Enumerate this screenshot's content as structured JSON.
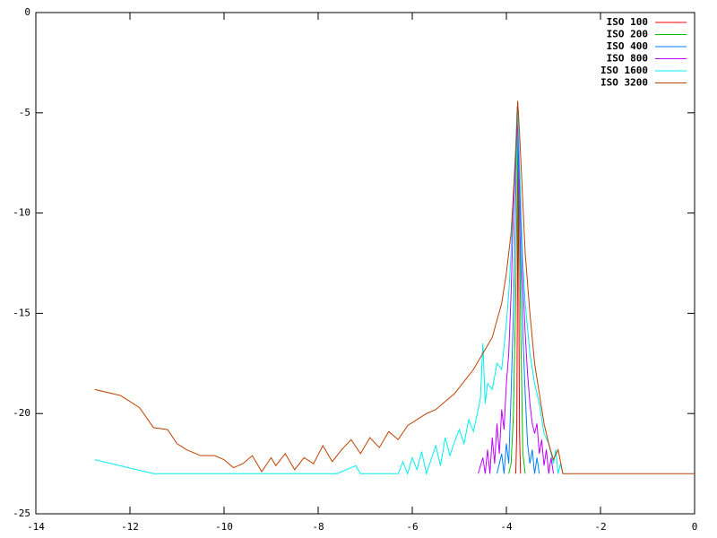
{
  "chart_data": {
    "type": "line",
    "xlim": [
      -14,
      0
    ],
    "ylim": [
      -25,
      0
    ],
    "xticks": [
      -14,
      -12,
      -10,
      -8,
      -6,
      -4,
      -2,
      0
    ],
    "yticks": [
      -25,
      -20,
      -15,
      -10,
      -5,
      0
    ],
    "legend": "top-right",
    "series": [
      {
        "name": "ISO 100",
        "color": "#ff0000",
        "x": [
          -3.8,
          -3.78,
          -3.76,
          -3.75,
          -3.74,
          -3.72,
          -3.7
        ],
        "values": [
          -23,
          -21,
          -12,
          -4.8,
          -12,
          -21,
          -23
        ]
      },
      {
        "name": "ISO 200",
        "color": "#00c000",
        "x": [
          -3.95,
          -3.9,
          -3.85,
          -3.8,
          -3.76,
          -3.75,
          -3.74,
          -3.7,
          -3.65,
          -3.6
        ],
        "values": [
          -23,
          -22.5,
          -20,
          -14,
          -7,
          -4.8,
          -7,
          -15,
          -22,
          -23
        ]
      },
      {
        "name": "ISO 400",
        "color": "#0080ff",
        "x": [
          -4.2,
          -4.1,
          -4.05,
          -4.0,
          -3.95,
          -3.9,
          -3.85,
          -3.8,
          -3.77,
          -3.74,
          -3.7,
          -3.65,
          -3.6,
          -3.55,
          -3.5,
          -3.45,
          -3.4,
          -3.35,
          -3.3
        ],
        "values": [
          -23,
          -22,
          -23,
          -21.5,
          -22.5,
          -19,
          -15,
          -9,
          -4.7,
          -8,
          -12,
          -16,
          -19,
          -21.5,
          -22.5,
          -21.8,
          -23,
          -22.2,
          -23
        ]
      },
      {
        "name": "ISO 800",
        "color": "#c000ff",
        "x": [
          -4.6,
          -4.5,
          -4.45,
          -4.4,
          -4.35,
          -4.3,
          -4.25,
          -4.2,
          -4.15,
          -4.1,
          -4.05,
          -4.0,
          -3.95,
          -3.9,
          -3.85,
          -3.8,
          -3.77,
          -3.74,
          -3.7,
          -3.65,
          -3.6,
          -3.55,
          -3.5,
          -3.45,
          -3.4,
          -3.35,
          -3.3,
          -3.25,
          -3.2,
          -3.15,
          -3.1,
          -3.05,
          -3.0
        ],
        "values": [
          -23,
          -22.2,
          -23,
          -21.8,
          -23,
          -21.2,
          -22.5,
          -20.5,
          -22,
          -19.8,
          -20.8,
          -18.5,
          -17,
          -14,
          -10,
          -7,
          -4.8,
          -7,
          -10,
          -13.5,
          -16,
          -18,
          -19.5,
          -20.5,
          -21,
          -20.5,
          -22,
          -21.3,
          -22.6,
          -21.8,
          -23,
          -22.2,
          -23
        ]
      },
      {
        "name": "ISO 1600",
        "color": "#00eeee",
        "x": [
          -12.75,
          -11.5,
          -7.6,
          -7.2,
          -7.1,
          -6.3,
          -6.2,
          -6.1,
          -6.0,
          -5.9,
          -5.8,
          -5.7,
          -5.6,
          -5.5,
          -5.4,
          -5.3,
          -5.2,
          -5.1,
          -5.0,
          -4.9,
          -4.8,
          -4.7,
          -4.6,
          -4.55,
          -4.5,
          -4.45,
          -4.4,
          -4.3,
          -4.2,
          -4.1,
          -4.0,
          -3.95,
          -3.9,
          -3.85,
          -3.8,
          -3.77,
          -3.74,
          -3.7,
          -3.65,
          -3.6,
          -3.5,
          -3.4,
          -3.3,
          -3.2,
          -3.1,
          -3.0,
          -2.95,
          -2.9,
          -2.85,
          -2.8
        ],
        "values": [
          -22.3,
          -23,
          -23,
          -22.6,
          -23,
          -23,
          -22.4,
          -23,
          -22.2,
          -22.8,
          -21.9,
          -23,
          -22.3,
          -21.6,
          -22.6,
          -21.2,
          -22.1,
          -21.4,
          -20.8,
          -21.5,
          -20.3,
          -20.9,
          -19.8,
          -19.2,
          -16.5,
          -19.5,
          -18.5,
          -18.8,
          -17.5,
          -17.8,
          -15.5,
          -14,
          -12,
          -9,
          -6.5,
          -4.8,
          -6,
          -9,
          -12.5,
          -14.5,
          -17,
          -18.5,
          -19.5,
          -21,
          -21.5,
          -22.5,
          -21.8,
          -23,
          -22.5,
          -23
        ]
      },
      {
        "name": "ISO 3200",
        "color": "#c04000",
        "x": [
          -12.75,
          -12.2,
          -11.8,
          -11.5,
          -11.2,
          -11.0,
          -10.8,
          -10.5,
          -10.2,
          -10.0,
          -9.8,
          -9.6,
          -9.4,
          -9.2,
          -9.0,
          -8.9,
          -8.7,
          -8.5,
          -8.3,
          -8.1,
          -7.9,
          -7.7,
          -7.5,
          -7.3,
          -7.1,
          -6.9,
          -6.7,
          -6.5,
          -6.3,
          -6.1,
          -5.9,
          -5.7,
          -5.5,
          -5.3,
          -5.1,
          -4.9,
          -4.7,
          -4.5,
          -4.3,
          -4.1,
          -4.0,
          -3.9,
          -3.85,
          -3.8,
          -3.76,
          -3.72,
          -3.68,
          -3.6,
          -3.5,
          -3.4,
          -3.3,
          -3.2,
          -3.1,
          -3.0,
          -2.9,
          -2.8,
          -2.7,
          0
        ],
        "values": [
          -18.8,
          -19.1,
          -19.7,
          -20.7,
          -20.8,
          -21.5,
          -21.8,
          -22.1,
          -22.1,
          -22.3,
          -22.7,
          -22.5,
          -22.1,
          -22.9,
          -22.2,
          -22.6,
          -22.0,
          -22.8,
          -22.2,
          -22.5,
          -21.6,
          -22.4,
          -21.8,
          -21.3,
          -22.0,
          -21.2,
          -21.7,
          -20.9,
          -21.3,
          -20.6,
          -20.3,
          -20.0,
          -19.8,
          -19.4,
          -19.0,
          -18.4,
          -17.8,
          -17.0,
          -16.2,
          -14.5,
          -13.0,
          -11.0,
          -9.0,
          -7.0,
          -4.4,
          -6.0,
          -8.0,
          -12.0,
          -15.0,
          -17.5,
          -19.0,
          -20.5,
          -21.5,
          -22.3,
          -21.8,
          -23.0,
          -23.0,
          -23.0
        ]
      }
    ]
  }
}
